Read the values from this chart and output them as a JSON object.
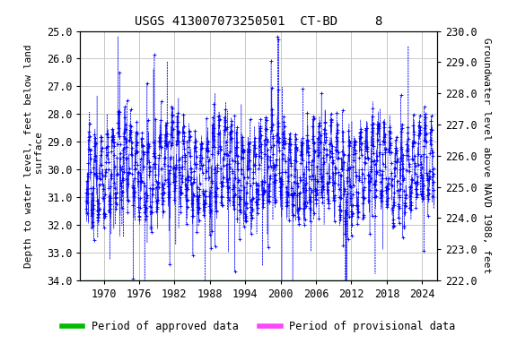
{
  "title": "USGS 413007073250501  CT-BD     8",
  "ylabel_left": "Depth to water level, feet below land\n surface",
  "ylabel_right": "Groundwater level above NAVD 1988, feet",
  "ylim_left": [
    25.0,
    34.0
  ],
  "ylim_right": [
    230.0,
    222.0
  ],
  "yticks_left": [
    25.0,
    26.0,
    27.0,
    28.0,
    29.0,
    30.0,
    31.0,
    32.0,
    33.0,
    34.0
  ],
  "yticks_right": [
    230.0,
    229.0,
    228.0,
    227.0,
    226.0,
    225.0,
    224.0,
    223.0,
    222.0
  ],
  "xlim": [
    1966.0,
    2026.5
  ],
  "xticks": [
    1970,
    1976,
    1982,
    1988,
    1994,
    2000,
    2006,
    2012,
    2018,
    2024
  ],
  "data_color": "#0000ff",
  "approved_color": "#00bb00",
  "provisional_color": "#ff44ff",
  "approved_bar_xmin": 1966.5,
  "approved_bar_xmax": 2023.7,
  "provisional_bar_xmin": 2023.7,
  "provisional_bar_xmax": 2026.4,
  "background_color": "#ffffff",
  "plot_bg_color": "#ffffff",
  "grid_color": "#c8c8c8",
  "title_fontsize": 10,
  "label_fontsize": 8,
  "tick_fontsize": 8.5,
  "legend_fontsize": 8.5,
  "legend_label_approved": "Period of approved data",
  "legend_label_provisional": "Period of provisional data"
}
